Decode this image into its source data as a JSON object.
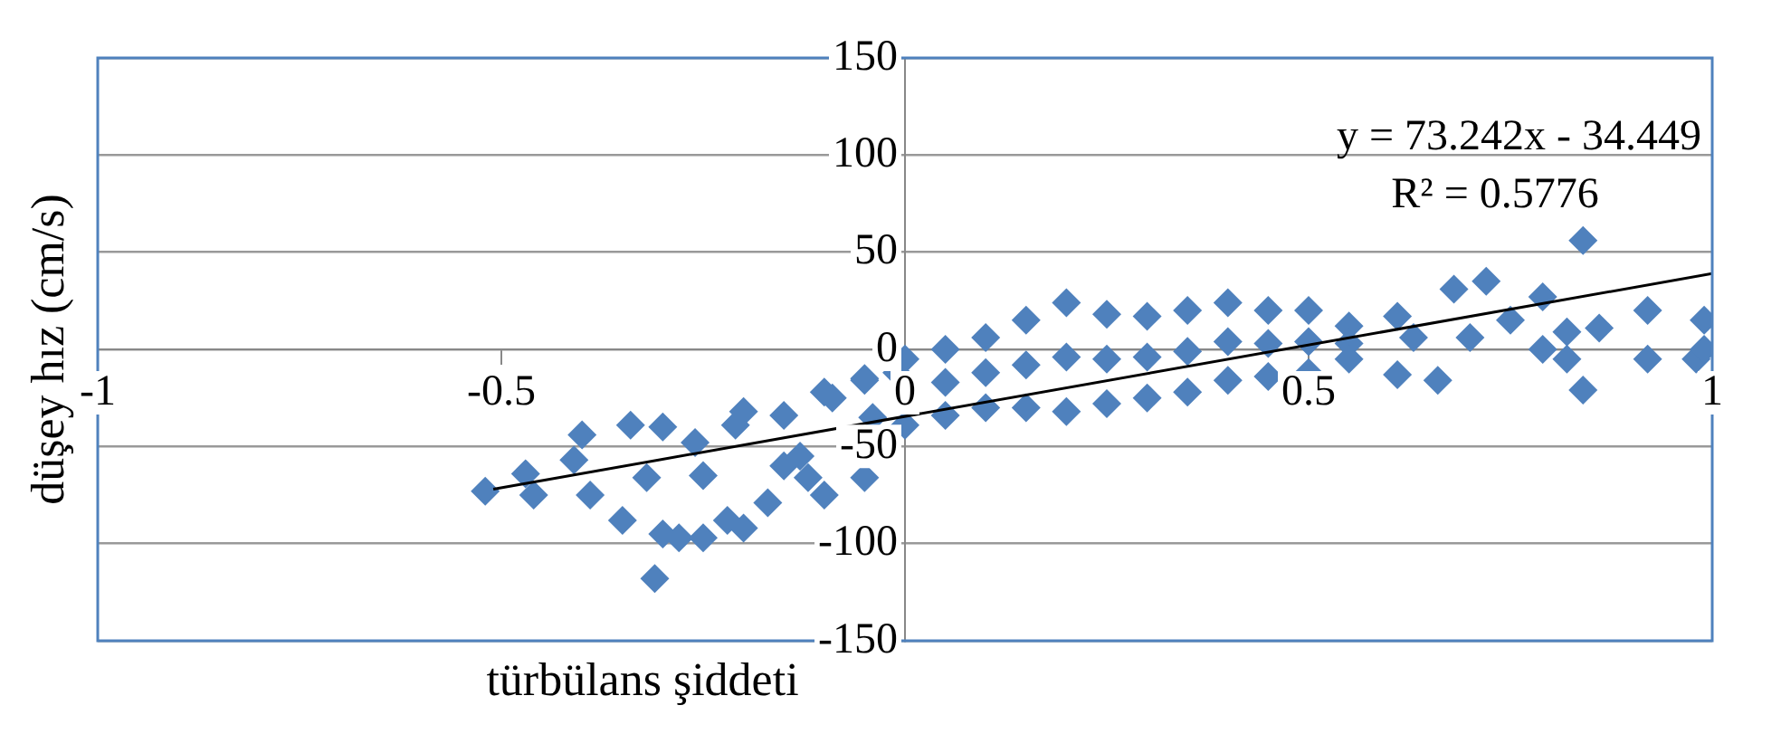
{
  "chart_data": {
    "type": "scatter",
    "xlabel": "türbülans şiddeti",
    "ylabel": "düşey hız (cm/s)",
    "annotations": [
      "y = 73.242x - 34.449",
      "R² = 0.5776"
    ],
    "xlim": [
      -1,
      1
    ],
    "xticks": [
      -1,
      -0.5,
      0,
      0.5,
      1
    ],
    "ylim": [
      -150,
      150
    ],
    "yticks": [
      -150,
      -100,
      -50,
      0,
      50,
      100,
      150
    ],
    "grid": "y",
    "legend": false,
    "series": [
      {
        "color": "#4f81bd",
        "marker": "diamond",
        "x": [
          -0.52,
          -0.47,
          -0.46,
          -0.4,
          -0.39,
          -0.41,
          -0.34,
          -0.35,
          -0.31,
          -0.32,
          -0.28,
          -0.25,
          -0.26,
          -0.21,
          -0.22,
          -0.17,
          -0.15,
          -0.12,
          -0.09,
          -0.13,
          -0.05,
          -0.04,
          -0.01,
          0,
          -0.3,
          -0.3,
          -0.25,
          -0.2,
          -0.2,
          -0.15,
          -0.1,
          -0.1,
          -0.05,
          -0.05,
          0,
          0.05,
          0.05,
          0.05,
          0.1,
          0.1,
          0.1,
          0.15,
          0.15,
          0.15,
          0.2,
          0.2,
          0.2,
          0.25,
          0.25,
          0.25,
          0.3,
          0.3,
          0.3,
          0.35,
          0.35,
          0.35,
          0.4,
          0.4,
          0.4,
          0.45,
          0.45,
          0.45,
          0.5,
          0.5,
          0.5,
          0.55,
          0.55,
          0.55,
          0.61,
          0.61,
          0.66,
          0.68,
          0.72,
          0.7,
          0.75,
          0.79,
          0.79,
          0.82,
          0.84,
          0.84,
          0.86,
          0.82,
          0.92,
          0.92,
          0.99,
          0.98,
          0.99,
          0.63
        ],
        "values": [
          -73,
          -64,
          -75,
          -44,
          -75,
          -57,
          -39,
          -88,
          -118,
          -66,
          -97,
          -97,
          -48,
          -39,
          -88,
          -79,
          -34,
          -66,
          -25,
          -55,
          -16,
          -35,
          -12,
          -39,
          -40,
          -95,
          -65,
          -32,
          -92,
          -60,
          -22,
          -75,
          -15,
          -66,
          -5,
          0,
          -17,
          -34,
          6,
          -12,
          -30,
          15,
          -8,
          -30,
          24,
          -4,
          -32,
          18,
          -5,
          -28,
          17,
          -4,
          -25,
          20,
          -1,
          -22,
          24,
          4,
          -16,
          20,
          3,
          -14,
          20,
          4,
          -12,
          12,
          3,
          -5,
          17,
          -13,
          -16,
          31,
          35,
          6,
          15,
          27,
          0,
          9,
          56,
          -21,
          11,
          -5,
          20,
          -5,
          15,
          -5,
          0,
          6
        ]
      },
      {
        "type": "line",
        "color": "#000000",
        "marker": "none",
        "x": [
          -0.51,
          1
        ],
        "values": [
          -72,
          39
        ]
      }
    ]
  }
}
